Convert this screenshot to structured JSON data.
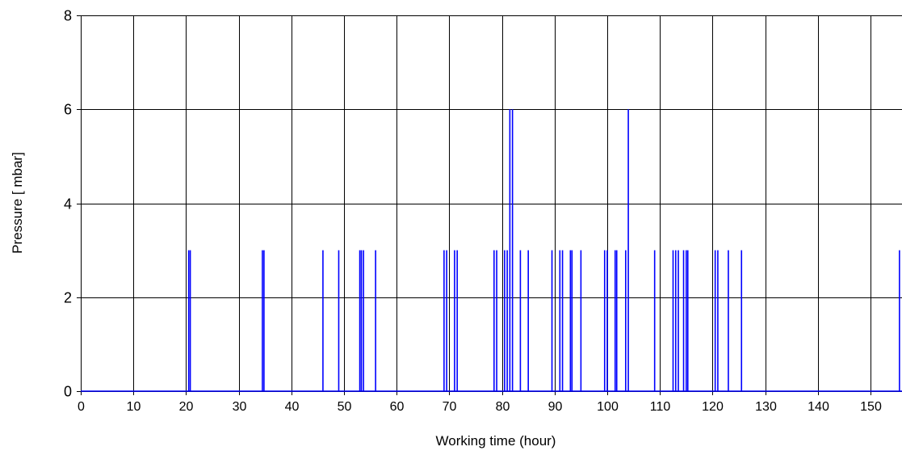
{
  "chart_data": {
    "type": "line",
    "title": "",
    "xlabel": "Working time (hour)",
    "ylabel": "Pressure [ mbar]",
    "xlim": [
      0,
      156
    ],
    "ylim": [
      0,
      8
    ],
    "x_ticks": [
      0,
      10,
      20,
      30,
      40,
      50,
      60,
      70,
      80,
      90,
      100,
      110,
      120,
      130,
      140,
      150
    ],
    "y_ticks": [
      0,
      2,
      4,
      6,
      8
    ],
    "grid": true,
    "legend": "none",
    "colors": {
      "series": "#0000ff",
      "grid": "#000000",
      "background": "#ffffff"
    },
    "series": [
      {
        "values_description": "pressure spikes (x in hours, y in mbar); baseline 0 elsewhere",
        "spikes": [
          {
            "x": 20.5,
            "y": 3
          },
          {
            "x": 20.8,
            "y": 3
          },
          {
            "x": 34.5,
            "y": 3
          },
          {
            "x": 34.8,
            "y": 3
          },
          {
            "x": 46.0,
            "y": 3
          },
          {
            "x": 49.0,
            "y": 3
          },
          {
            "x": 53.0,
            "y": 3
          },
          {
            "x": 53.3,
            "y": 3
          },
          {
            "x": 53.7,
            "y": 3
          },
          {
            "x": 56.0,
            "y": 3
          },
          {
            "x": 69.0,
            "y": 3
          },
          {
            "x": 69.5,
            "y": 3
          },
          {
            "x": 71.0,
            "y": 3
          },
          {
            "x": 71.5,
            "y": 3
          },
          {
            "x": 78.5,
            "y": 3
          },
          {
            "x": 79.0,
            "y": 3
          },
          {
            "x": 80.5,
            "y": 3
          },
          {
            "x": 81.0,
            "y": 3
          },
          {
            "x": 81.5,
            "y": 6
          },
          {
            "x": 82.0,
            "y": 6
          },
          {
            "x": 83.5,
            "y": 3
          },
          {
            "x": 85.0,
            "y": 3
          },
          {
            "x": 89.5,
            "y": 3
          },
          {
            "x": 91.0,
            "y": 3
          },
          {
            "x": 91.5,
            "y": 3
          },
          {
            "x": 93.0,
            "y": 3
          },
          {
            "x": 93.3,
            "y": 3
          },
          {
            "x": 95.0,
            "y": 3
          },
          {
            "x": 99.5,
            "y": 3
          },
          {
            "x": 100.0,
            "y": 3
          },
          {
            "x": 101.5,
            "y": 3
          },
          {
            "x": 101.8,
            "y": 3
          },
          {
            "x": 103.5,
            "y": 3
          },
          {
            "x": 104.0,
            "y": 6
          },
          {
            "x": 109.0,
            "y": 3
          },
          {
            "x": 112.5,
            "y": 3
          },
          {
            "x": 113.0,
            "y": 3
          },
          {
            "x": 113.5,
            "y": 3
          },
          {
            "x": 114.5,
            "y": 3
          },
          {
            "x": 115.0,
            "y": 3
          },
          {
            "x": 115.3,
            "y": 3
          },
          {
            "x": 120.5,
            "y": 3
          },
          {
            "x": 121.0,
            "y": 3
          },
          {
            "x": 123.0,
            "y": 3
          },
          {
            "x": 125.5,
            "y": 3
          },
          {
            "x": 155.5,
            "y": 3
          }
        ]
      }
    ]
  }
}
